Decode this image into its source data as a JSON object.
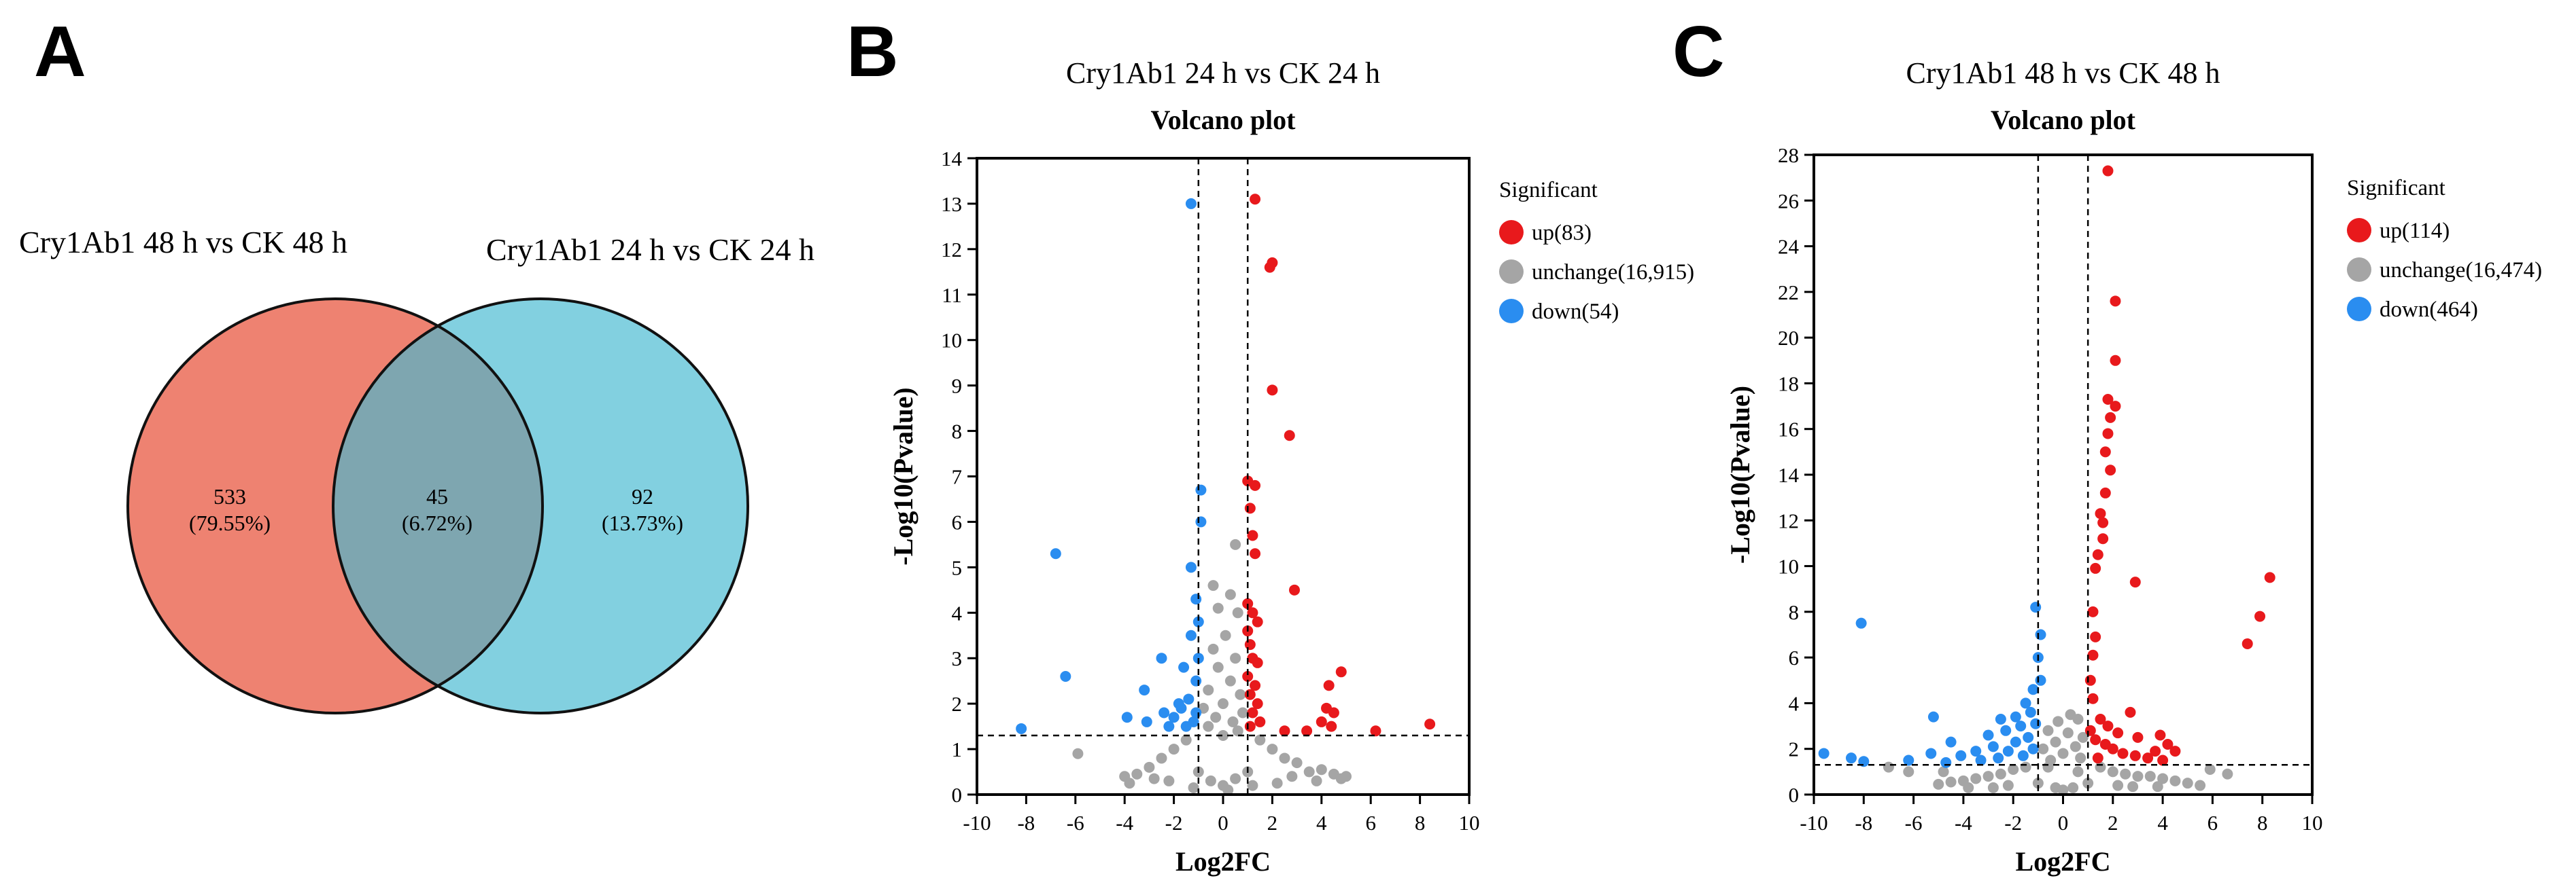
{
  "panel_labels": {
    "a": "A",
    "b": "B",
    "c": "C"
  },
  "colors": {
    "up": "#e8191c",
    "unchange": "#a5a5a5",
    "down": "#2a8df0",
    "venn_left": "#ee8271",
    "venn_right": "#82d0e0",
    "venn_overlap": "#7ea6b0"
  },
  "chart_data": [
    {
      "type": "venn",
      "sets": [
        {
          "label": "Cry1Ab1 48 h vs CK 48 h",
          "only_count": "533",
          "only_pct": "(79.55%)"
        },
        {
          "label": "Cry1Ab1 24 h vs CK 24 h",
          "only_count": "92",
          "only_pct": "(13.73%)"
        }
      ],
      "intersection": {
        "count": "45",
        "pct": "(6.72%)"
      }
    },
    {
      "type": "scatter",
      "title": "Cry1Ab1 24 h vs CK 24 h",
      "subtitle": "Volcano plot",
      "xlabel": "Log2FC",
      "ylabel": "-Log10(Pvalue)",
      "xlim": [
        -10,
        10
      ],
      "ylim": [
        0,
        14
      ],
      "xticks": [
        "-10",
        "-8",
        "-6",
        "-4",
        "-2",
        "0",
        "2",
        "4",
        "6",
        "8",
        "10"
      ],
      "yticks": [
        "0",
        "1",
        "2",
        "3",
        "4",
        "5",
        "6",
        "7",
        "8",
        "9",
        "10",
        "11",
        "12",
        "13",
        "14"
      ],
      "thresholds": {
        "log2fc": [
          -1,
          1
        ],
        "neglog10p": 1.3
      },
      "legend_title": "Significant",
      "legend": [
        {
          "key": "up",
          "label": "up(83)"
        },
        {
          "key": "unchange",
          "label": "unchange(16,915)"
        },
        {
          "key": "down",
          "label": "down(54)"
        }
      ],
      "series": {
        "up": [
          [
            1.3,
            13.1
          ],
          [
            1.9,
            11.6
          ],
          [
            2.0,
            11.7
          ],
          [
            2.0,
            8.9
          ],
          [
            2.7,
            7.9
          ],
          [
            1.0,
            6.9
          ],
          [
            1.1,
            6.3
          ],
          [
            1.3,
            6.8
          ],
          [
            1.2,
            5.7
          ],
          [
            1.3,
            5.3
          ],
          [
            2.9,
            4.5
          ],
          [
            1.0,
            4.2
          ],
          [
            1.2,
            4.0
          ],
          [
            1.4,
            3.8
          ],
          [
            1.0,
            3.6
          ],
          [
            1.1,
            3.3
          ],
          [
            1.2,
            3.0
          ],
          [
            1.4,
            2.9
          ],
          [
            1.0,
            2.6
          ],
          [
            1.3,
            2.4
          ],
          [
            1.1,
            2.2
          ],
          [
            1.4,
            2.0
          ],
          [
            1.2,
            1.8
          ],
          [
            1.5,
            1.6
          ],
          [
            1.1,
            1.5
          ],
          [
            4.8,
            2.7
          ],
          [
            4.3,
            2.4
          ],
          [
            4.2,
            1.9
          ],
          [
            4.5,
            1.8
          ],
          [
            4.0,
            1.6
          ],
          [
            4.4,
            1.5
          ],
          [
            6.2,
            1.4
          ],
          [
            8.4,
            1.55
          ],
          [
            2.5,
            1.4
          ],
          [
            3.4,
            1.4
          ]
        ],
        "down": [
          [
            -1.3,
            13.0
          ],
          [
            -0.9,
            6.7
          ],
          [
            -0.9,
            6.0
          ],
          [
            -1.3,
            5.0
          ],
          [
            -6.8,
            5.3
          ],
          [
            -1.1,
            4.3
          ],
          [
            -1.0,
            3.8
          ],
          [
            -1.3,
            3.5
          ],
          [
            -2.5,
            3.0
          ],
          [
            -1.0,
            3.0
          ],
          [
            -1.6,
            2.8
          ],
          [
            -1.1,
            2.5
          ],
          [
            -6.4,
            2.6
          ],
          [
            -3.2,
            2.3
          ],
          [
            -1.4,
            2.1
          ],
          [
            -1.7,
            1.9
          ],
          [
            -2.4,
            1.8
          ],
          [
            -3.9,
            1.7
          ],
          [
            -2.0,
            1.7
          ],
          [
            -1.2,
            1.6
          ],
          [
            -1.5,
            1.5
          ],
          [
            -2.2,
            1.5
          ],
          [
            -8.2,
            1.45
          ],
          [
            -3.1,
            1.6
          ],
          [
            -1.8,
            2.0
          ],
          [
            -1.1,
            1.8
          ]
        ],
        "unchange": [
          [
            -0.4,
            4.6
          ],
          [
            -0.2,
            4.1
          ],
          [
            0.3,
            4.4
          ],
          [
            0.6,
            4.0
          ],
          [
            0.5,
            5.5
          ],
          [
            0.1,
            3.5
          ],
          [
            -0.4,
            3.2
          ],
          [
            0.5,
            3.0
          ],
          [
            -0.2,
            2.8
          ],
          [
            0.3,
            2.5
          ],
          [
            -0.6,
            2.3
          ],
          [
            0.7,
            2.2
          ],
          [
            0.0,
            2.0
          ],
          [
            -0.8,
            1.9
          ],
          [
            0.8,
            1.8
          ],
          [
            -0.3,
            1.7
          ],
          [
            0.4,
            1.6
          ],
          [
            -0.6,
            1.5
          ],
          [
            0.6,
            1.4
          ],
          [
            0.0,
            1.3
          ],
          [
            -1.5,
            1.2
          ],
          [
            1.5,
            1.2
          ],
          [
            -2.0,
            1.0
          ],
          [
            2.0,
            1.0
          ],
          [
            -2.5,
            0.8
          ],
          [
            2.5,
            0.8
          ],
          [
            -3.0,
            0.6
          ],
          [
            3.0,
            0.7
          ],
          [
            -1.0,
            0.5
          ],
          [
            1.0,
            0.5
          ],
          [
            -3.5,
            0.45
          ],
          [
            3.5,
            0.5
          ],
          [
            -0.5,
            0.3
          ],
          [
            0.5,
            0.35
          ],
          [
            4.0,
            0.55
          ],
          [
            -4.0,
            0.4
          ],
          [
            4.5,
            0.45
          ],
          [
            5.0,
            0.4
          ],
          [
            -5.9,
            0.9
          ],
          [
            4.8,
            0.35
          ],
          [
            -2.2,
            0.3
          ],
          [
            2.2,
            0.25
          ],
          [
            0.0,
            0.2
          ],
          [
            -1.2,
            0.15
          ],
          [
            1.2,
            0.2
          ],
          [
            -2.8,
            0.35
          ],
          [
            2.8,
            0.4
          ],
          [
            3.8,
            0.3
          ],
          [
            -3.8,
            0.25
          ],
          [
            0.2,
            0.1
          ]
        ]
      }
    },
    {
      "type": "scatter",
      "title": "Cry1Ab1 48 h vs CK 48 h",
      "subtitle": "Volcano plot",
      "xlabel": "Log2FC",
      "ylabel": "-Log10(Pvalue)",
      "xlim": [
        -10,
        10
      ],
      "ylim": [
        0,
        28
      ],
      "xticks": [
        "-10",
        "-8",
        "-6",
        "-4",
        "-2",
        "0",
        "2",
        "4",
        "6",
        "8",
        "10"
      ],
      "yticks": [
        "0",
        "2",
        "4",
        "6",
        "8",
        "10",
        "12",
        "14",
        "16",
        "18",
        "20",
        "22",
        "24",
        "26",
        "28"
      ],
      "thresholds": {
        "log2fc": [
          -1,
          1
        ],
        "neglog10p": 1.3
      },
      "legend_title": "Significant",
      "legend": [
        {
          "key": "up",
          "label": "up(114)"
        },
        {
          "key": "unchange",
          "label": "unchange(16,474)"
        },
        {
          "key": "down",
          "label": "down(464)"
        }
      ],
      "series": {
        "up": [
          [
            1.8,
            27.3
          ],
          [
            2.1,
            21.6
          ],
          [
            2.1,
            19.0
          ],
          [
            1.8,
            17.3
          ],
          [
            2.1,
            17.0
          ],
          [
            1.9,
            16.5
          ],
          [
            1.8,
            15.8
          ],
          [
            1.7,
            15.0
          ],
          [
            1.9,
            14.2
          ],
          [
            1.7,
            13.2
          ],
          [
            1.5,
            12.3
          ],
          [
            1.6,
            11.9
          ],
          [
            1.6,
            11.2
          ],
          [
            1.4,
            10.5
          ],
          [
            1.3,
            9.9
          ],
          [
            2.9,
            9.3
          ],
          [
            8.3,
            9.5
          ],
          [
            7.9,
            7.8
          ],
          [
            7.4,
            6.6
          ],
          [
            1.2,
            8.0
          ],
          [
            1.3,
            6.9
          ],
          [
            1.2,
            6.1
          ],
          [
            1.1,
            5.0
          ],
          [
            1.2,
            4.2
          ],
          [
            2.7,
            3.6
          ],
          [
            1.5,
            3.3
          ],
          [
            1.1,
            2.8
          ],
          [
            1.3,
            2.4
          ],
          [
            1.7,
            2.2
          ],
          [
            2.0,
            2.0
          ],
          [
            2.4,
            1.8
          ],
          [
            2.9,
            1.7
          ],
          [
            3.4,
            1.6
          ],
          [
            3.9,
            2.6
          ],
          [
            4.2,
            2.2
          ],
          [
            4.5,
            1.9
          ],
          [
            1.4,
            1.6
          ],
          [
            3.0,
            2.5
          ],
          [
            3.7,
            1.9
          ],
          [
            4.0,
            1.5
          ],
          [
            2.2,
            2.7
          ],
          [
            1.8,
            3.0
          ]
        ],
        "down": [
          [
            -1.1,
            8.2
          ],
          [
            -8.1,
            7.5
          ],
          [
            -0.9,
            7.0
          ],
          [
            -1.0,
            6.0
          ],
          [
            -0.9,
            5.0
          ],
          [
            -1.2,
            4.6
          ],
          [
            -1.5,
            4.0
          ],
          [
            -1.3,
            3.6
          ],
          [
            -1.9,
            3.4
          ],
          [
            -2.5,
            3.3
          ],
          [
            -1.1,
            3.1
          ],
          [
            -1.7,
            3.0
          ],
          [
            -5.2,
            3.4
          ],
          [
            -2.3,
            2.8
          ],
          [
            -3.0,
            2.6
          ],
          [
            -1.4,
            2.5
          ],
          [
            -1.9,
            2.3
          ],
          [
            -4.5,
            2.3
          ],
          [
            -2.8,
            2.1
          ],
          [
            -1.2,
            2.0
          ],
          [
            -2.2,
            1.9
          ],
          [
            -3.5,
            1.9
          ],
          [
            -5.3,
            1.8
          ],
          [
            -4.1,
            1.7
          ],
          [
            -1.6,
            1.7
          ],
          [
            -2.6,
            1.6
          ],
          [
            -9.6,
            1.8
          ],
          [
            -8.5,
            1.6
          ],
          [
            -8.0,
            1.45
          ],
          [
            -6.2,
            1.5
          ],
          [
            -4.7,
            1.4
          ],
          [
            -3.3,
            1.5
          ]
        ],
        "unchange": [
          [
            0.3,
            3.5
          ],
          [
            -0.2,
            3.2
          ],
          [
            0.6,
            3.3
          ],
          [
            -0.6,
            2.8
          ],
          [
            0.2,
            2.7
          ],
          [
            0.8,
            2.5
          ],
          [
            -0.3,
            2.3
          ],
          [
            0.5,
            2.1
          ],
          [
            -0.8,
            2.0
          ],
          [
            0.0,
            1.8
          ],
          [
            0.7,
            1.6
          ],
          [
            -0.5,
            1.5
          ],
          [
            -1.5,
            1.2
          ],
          [
            1.5,
            1.2
          ],
          [
            -2.0,
            1.1
          ],
          [
            2.0,
            1.0
          ],
          [
            -2.5,
            0.9
          ],
          [
            2.5,
            0.9
          ],
          [
            -3.0,
            0.8
          ],
          [
            3.0,
            0.8
          ],
          [
            -3.5,
            0.7
          ],
          [
            3.5,
            0.8
          ],
          [
            -4.0,
            0.6
          ],
          [
            4.0,
            0.7
          ],
          [
            -4.5,
            0.55
          ],
          [
            4.5,
            0.6
          ],
          [
            5.0,
            0.5
          ],
          [
            -5.0,
            0.45
          ],
          [
            5.5,
            0.4
          ],
          [
            -1.0,
            0.5
          ],
          [
            1.0,
            0.5
          ],
          [
            -0.3,
            0.3
          ],
          [
            0.4,
            0.3
          ],
          [
            -2.2,
            0.4
          ],
          [
            2.2,
            0.4
          ],
          [
            -6.2,
            1.0
          ],
          [
            -7.0,
            1.2
          ],
          [
            6.6,
            0.9
          ],
          [
            5.9,
            1.1
          ],
          [
            -2.8,
            0.3
          ],
          [
            2.8,
            0.35
          ],
          [
            -3.8,
            0.3
          ],
          [
            3.8,
            0.35
          ],
          [
            0.0,
            0.2
          ],
          [
            -4.8,
            1.0
          ],
          [
            -0.6,
            1.2
          ],
          [
            0.6,
            1.0
          ]
        ]
      }
    }
  ]
}
